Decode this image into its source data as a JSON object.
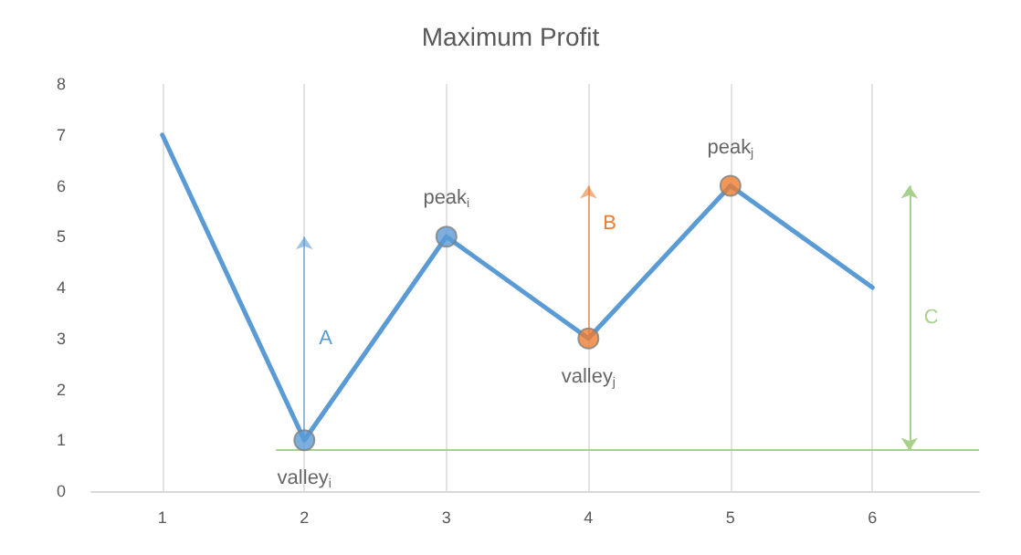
{
  "chart_data": {
    "type": "line",
    "title": "Maximum Profit",
    "x": [
      1,
      2,
      3,
      4,
      5,
      6
    ],
    "series": [
      {
        "color": "#5b9bd5",
        "values": [
          7,
          1,
          5,
          3,
          6,
          4
        ],
        "marker": "none"
      },
      {
        "type": "scatter",
        "x": [
          2,
          3,
          4,
          5
        ],
        "values": [
          1,
          5,
          3,
          6
        ],
        "colors": [
          "#5b9bd5",
          "#5b9bd5",
          "#ed7d31",
          "#ed7d31"
        ],
        "marker": "circle"
      }
    ],
    "xlim": [
      0.5,
      6.75
    ],
    "xticks": [
      1,
      2,
      3,
      4,
      5,
      6
    ],
    "ylim": [
      0,
      8
    ],
    "yticks": [
      0,
      1,
      2,
      3,
      4,
      5,
      6,
      7,
      8
    ],
    "grid": "x",
    "ref_lines": [
      {
        "axis": "y",
        "value": 0.8,
        "color": "#a9d18e"
      }
    ],
    "annotations": [
      "valley$_{i}$",
      "peak$_{i}$",
      "valley$_{j}$",
      "peak$_{j}$",
      "A",
      "B",
      "C"
    ]
  }
}
